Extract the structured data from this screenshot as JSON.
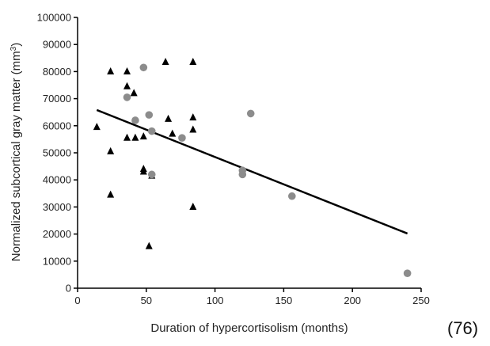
{
  "chart_data": {
    "type": "scatter",
    "xlabel": "Duration of hypercortisolism (months)",
    "ylabel": "Normalized subcortical gray matter (mm",
    "ylabel_sup": "3",
    "ylabel_close": ")",
    "xlim": [
      0,
      250
    ],
    "ylim": [
      0,
      100000
    ],
    "x_ticks": [
      0,
      50,
      100,
      150,
      200,
      250
    ],
    "y_ticks": [
      0,
      10000,
      20000,
      30000,
      40000,
      50000,
      60000,
      70000,
      80000,
      90000,
      100000
    ],
    "x_tick_labels": [
      "0",
      "50",
      "100",
      "150",
      "200",
      "250"
    ],
    "y_tick_labels": [
      "0",
      "10000",
      "20000",
      "30000",
      "40000",
      "50000",
      "60000",
      "70000",
      "80000",
      "90000",
      "100000"
    ],
    "grid": false,
    "series": [
      {
        "marker": "triangle",
        "color": "#000000",
        "points": [
          [
            14,
            59500
          ],
          [
            24,
            80000
          ],
          [
            24,
            50500
          ],
          [
            24,
            34500
          ],
          [
            36,
            80000
          ],
          [
            36,
            74500
          ],
          [
            36,
            55500
          ],
          [
            41,
            72000
          ],
          [
            42,
            55500
          ],
          [
            48,
            56000
          ],
          [
            48,
            44000
          ],
          [
            48,
            43000
          ],
          [
            52,
            15500
          ],
          [
            54,
            41500
          ],
          [
            64,
            83500
          ],
          [
            66,
            62500
          ],
          [
            69,
            57000
          ],
          [
            84,
            83500
          ],
          [
            84,
            63000
          ],
          [
            84,
            58500
          ],
          [
            84,
            30000
          ]
        ]
      },
      {
        "marker": "circle",
        "color": "#8c8c8c",
        "points": [
          [
            36,
            70500
          ],
          [
            42,
            62000
          ],
          [
            48,
            81500
          ],
          [
            52,
            64000
          ],
          [
            54,
            58000
          ],
          [
            54,
            42000
          ],
          [
            76,
            55500
          ],
          [
            120,
            43500
          ],
          [
            120,
            42000
          ],
          [
            126,
            64500
          ],
          [
            156,
            34000
          ],
          [
            240,
            5500
          ]
        ]
      }
    ],
    "trend_line": {
      "x": [
        14,
        240
      ],
      "y": [
        65800,
        20200
      ],
      "color": "#000000"
    }
  },
  "reference_label": "(76)"
}
